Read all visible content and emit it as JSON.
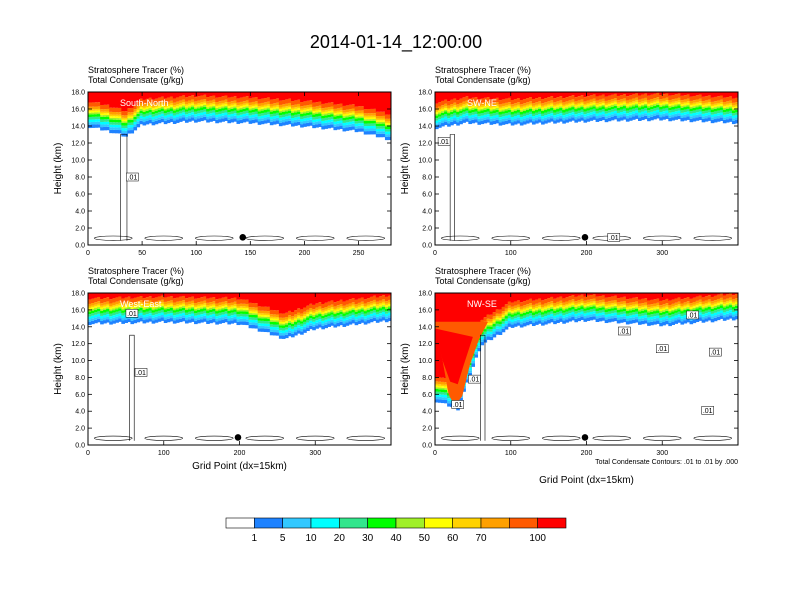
{
  "figure": {
    "title": "2014-01-14_12:00:00",
    "footnote": "Total Condensate Contours: .01 to .01 by .000"
  },
  "colorbar": {
    "colors": [
      "#ffffff",
      "#1e82ff",
      "#32c8ff",
      "#00ffff",
      "#32e68c",
      "#00ff00",
      "#a0f028",
      "#ffff00",
      "#ffd200",
      "#ffa000",
      "#ff5a00",
      "#ff0000"
    ],
    "labels": [
      "1",
      "5",
      "10",
      "20",
      "30",
      "40",
      "50",
      "60",
      "70",
      "100"
    ]
  },
  "chart_data": [
    {
      "type": "heatmap",
      "label": "South-North",
      "title_line1": "Stratosphere Tracer   (%)",
      "title_line2": "Total Condensate   (g/kg)",
      "ylabel": "Height (km)",
      "xlabel": "",
      "xlim": [
        0,
        280
      ],
      "ylim": [
        0,
        18
      ],
      "xticks": [
        "0",
        "50",
        "100",
        "150",
        "200",
        "250"
      ],
      "xtick_values": [
        0,
        50,
        100,
        150,
        200,
        250
      ],
      "yticks": [
        "0.0",
        "2.0",
        "4.0",
        "6.0",
        "8.0",
        "10.0",
        "12.0",
        "14.0",
        "16.0",
        "18.0"
      ],
      "tropopause_km": [
        [
          0,
          14.2
        ],
        [
          20,
          13.6
        ],
        [
          35,
          13.0
        ],
        [
          50,
          14.4
        ],
        [
          100,
          14.8
        ],
        [
          150,
          14.6
        ],
        [
          200,
          14.2
        ],
        [
          250,
          13.6
        ],
        [
          280,
          12.6
        ]
      ],
      "marker": {
        "x": 143,
        "y": 0.9
      },
      "contour_labels": [
        {
          "text": ".01",
          "x": 41,
          "y": 8.0
        }
      ]
    },
    {
      "type": "heatmap",
      "label": "SW-NE",
      "title_line1": "Stratosphere Tracer   (%)",
      "title_line2": "Total Condensate   (g/kg)",
      "ylabel": "Height (km)",
      "xlabel": "",
      "xlim": [
        0,
        400
      ],
      "ylim": [
        0,
        18
      ],
      "xticks": [
        "0",
        "100",
        "200",
        "300"
      ],
      "xtick_values": [
        0,
        100,
        200,
        300
      ],
      "yticks": [
        "0.0",
        "2.0",
        "4.0",
        "6.0",
        "8.0",
        "10.0",
        "12.0",
        "14.0",
        "16.0",
        "18.0"
      ],
      "tropopause_km": [
        [
          0,
          14.0
        ],
        [
          40,
          14.6
        ],
        [
          100,
          14.4
        ],
        [
          200,
          14.8
        ],
        [
          300,
          15.0
        ],
        [
          400,
          14.6
        ]
      ],
      "marker": {
        "x": 198,
        "y": 0.9
      },
      "contour_labels": [
        {
          "text": ".01",
          "x": 12,
          "y": 12.2
        },
        {
          "text": ".01",
          "x": 236,
          "y": 0.9
        }
      ]
    },
    {
      "type": "heatmap",
      "label": "West-East",
      "title_line1": "Stratosphere Tracer   (%)",
      "title_line2": "Total Condensate   (g/kg)",
      "ylabel": "Height (km)",
      "xlabel": "Grid Point (dx=15km)",
      "xlim": [
        0,
        400
      ],
      "ylim": [
        0,
        18
      ],
      "xticks": [
        "0",
        "100",
        "200",
        "300"
      ],
      "xtick_values": [
        0,
        100,
        200,
        300
      ],
      "yticks": [
        "0.0",
        "2.0",
        "4.0",
        "6.0",
        "8.0",
        "10.0",
        "12.0",
        "14.0",
        "16.0",
        "18.0"
      ],
      "tropopause_km": [
        [
          0,
          14.6
        ],
        [
          100,
          14.8
        ],
        [
          200,
          14.6
        ],
        [
          260,
          12.8
        ],
        [
          300,
          14.0
        ],
        [
          400,
          15.0
        ]
      ],
      "marker": {
        "x": 198,
        "y": 0.9
      },
      "contour_labels": [
        {
          "text": ".01",
          "x": 58,
          "y": 15.6
        },
        {
          "text": ".01",
          "x": 70,
          "y": 8.6
        }
      ]
    },
    {
      "type": "heatmap",
      "label": "NW-SE",
      "title_line1": "Stratosphere Tracer   (%)",
      "title_line2": "Total Condensate   (g/kg)",
      "ylabel": "Height (km)",
      "xlabel": "Grid Point (dx=15km)",
      "xlim": [
        0,
        400
      ],
      "ylim": [
        0,
        18
      ],
      "xticks": [
        "0",
        "100",
        "200",
        "300"
      ],
      "xtick_values": [
        0,
        100,
        200,
        300
      ],
      "yticks": [
        "0.0",
        "2.0",
        "4.0",
        "6.0",
        "8.0",
        "10.0",
        "12.0",
        "14.0",
        "16.0",
        "18.0"
      ],
      "tropopause_km": [
        [
          0,
          5.5
        ],
        [
          30,
          4.5
        ],
        [
          60,
          12.0
        ],
        [
          100,
          14.2
        ],
        [
          200,
          15.0
        ],
        [
          300,
          14.4
        ],
        [
          400,
          15.2
        ]
      ],
      "marker": {
        "x": 198,
        "y": 0.9
      },
      "contour_labels": [
        {
          "text": ".01",
          "x": 250,
          "y": 13.5
        },
        {
          "text": ".01",
          "x": 300,
          "y": 11.4
        },
        {
          "text": ".01",
          "x": 340,
          "y": 15.4
        },
        {
          "text": ".01",
          "x": 370,
          "y": 11.0
        },
        {
          "text": ".01",
          "x": 52,
          "y": 7.8
        },
        {
          "text": ".01",
          "x": 30,
          "y": 4.8
        },
        {
          "text": ".01",
          "x": 360,
          "y": 4.1
        }
      ]
    }
  ]
}
